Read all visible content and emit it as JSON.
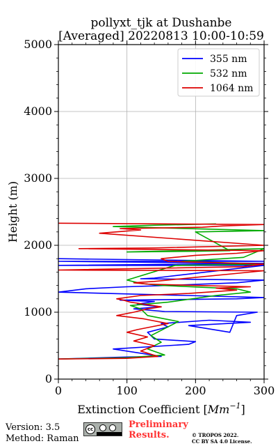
{
  "chart_data": {
    "type": "line",
    "title_line1": "pollyxt_tjk at Dushanbe",
    "title_line2": "[Averaged] 20220813 10:00-10:59",
    "xlabel": "Extinction Coefficient [",
    "xlabel_unit": "Mm",
    "xlabel_exp": "−1",
    "xlabel_close": "]",
    "ylabel": "Height (m)",
    "xlim": [
      0,
      300
    ],
    "ylim": [
      0,
      5000
    ],
    "xticks": [
      "0",
      "100",
      "200",
      "300"
    ],
    "yticks": [
      "0",
      "1000",
      "2000",
      "3000",
      "4000",
      "5000"
    ],
    "grid": true,
    "legend_position": "upper-right",
    "series": [
      {
        "name": "355 nm",
        "color": "#0000ff",
        "x": [
          0,
          100,
          150,
          80,
          190,
          200,
          140,
          130,
          160,
          150,
          220,
          280,
          190,
          250,
          260,
          290,
          155,
          110,
          150,
          115,
          140,
          90,
          260,
          300,
          0,
          40,
          100,
          160,
          210,
          260,
          300,
          120,
          140,
          300,
          0,
          300,
          0,
          300,
          0
        ],
        "y": [
          300,
          330,
          340,
          450,
          520,
          560,
          600,
          700,
          780,
          830,
          880,
          850,
          800,
          700,
          950,
          1000,
          1010,
          1050,
          1080,
          1120,
          1160,
          1180,
          1200,
          1220,
          1300,
          1350,
          1380,
          1400,
          1420,
          1440,
          1480,
          1500,
          1510,
          1700,
          1700,
          1730,
          1760,
          1760,
          1800
        ]
      },
      {
        "name": "532 nm",
        "color": "#00aa00",
        "x": [
          0,
          100,
          155,
          130,
          150,
          135,
          175,
          130,
          120,
          105,
          160,
          230,
          280,
          260,
          150,
          120,
          100,
          170,
          300,
          180,
          270,
          300,
          100,
          200,
          250,
          200,
          300,
          80,
          140,
          230
        ],
        "y": [
          300,
          320,
          360,
          450,
          550,
          650,
          860,
          950,
          1050,
          1100,
          1150,
          1250,
          1300,
          1350,
          1400,
          1430,
          1480,
          1700,
          1720,
          1760,
          1820,
          1950,
          1900,
          1910,
          1920,
          2200,
          2220,
          2280,
          2300,
          2320
        ]
      },
      {
        "name": "1064 nm",
        "color": "#dd0000",
        "x": [
          0,
          100,
          145,
          120,
          140,
          110,
          130,
          100,
          115,
          135,
          160,
          125,
          85,
          110,
          130,
          150,
          125,
          105,
          95,
          85,
          120,
          190,
          260,
          230,
          280,
          200,
          130,
          110,
          140,
          300,
          0,
          270,
          300,
          160,
          150,
          200,
          260,
          300,
          30,
          140,
          300,
          60,
          120,
          90,
          210,
          240,
          300,
          0
        ],
        "y": [
          300,
          310,
          340,
          420,
          500,
          570,
          630,
          700,
          740,
          780,
          830,
          900,
          950,
          1000,
          1050,
          1080,
          1120,
          1150,
          1180,
          1200,
          1250,
          1280,
          1330,
          1360,
          1380,
          1400,
          1420,
          1440,
          1460,
          1620,
          1630,
          1680,
          1720,
          1760,
          1800,
          1850,
          1880,
          1920,
          1950,
          1960,
          2000,
          2180,
          2230,
          2250,
          2270,
          2290,
          2310,
          2330
        ]
      }
    ]
  },
  "footer": {
    "version": "Version: 3.5",
    "method": "Method: Raman",
    "prelim_line1": "Preliminary",
    "prelim_line2": "Results.",
    "copyright_line1": "© TROPOS 2022.",
    "copyright_line2": "CC BY SA 4.0 License."
  }
}
